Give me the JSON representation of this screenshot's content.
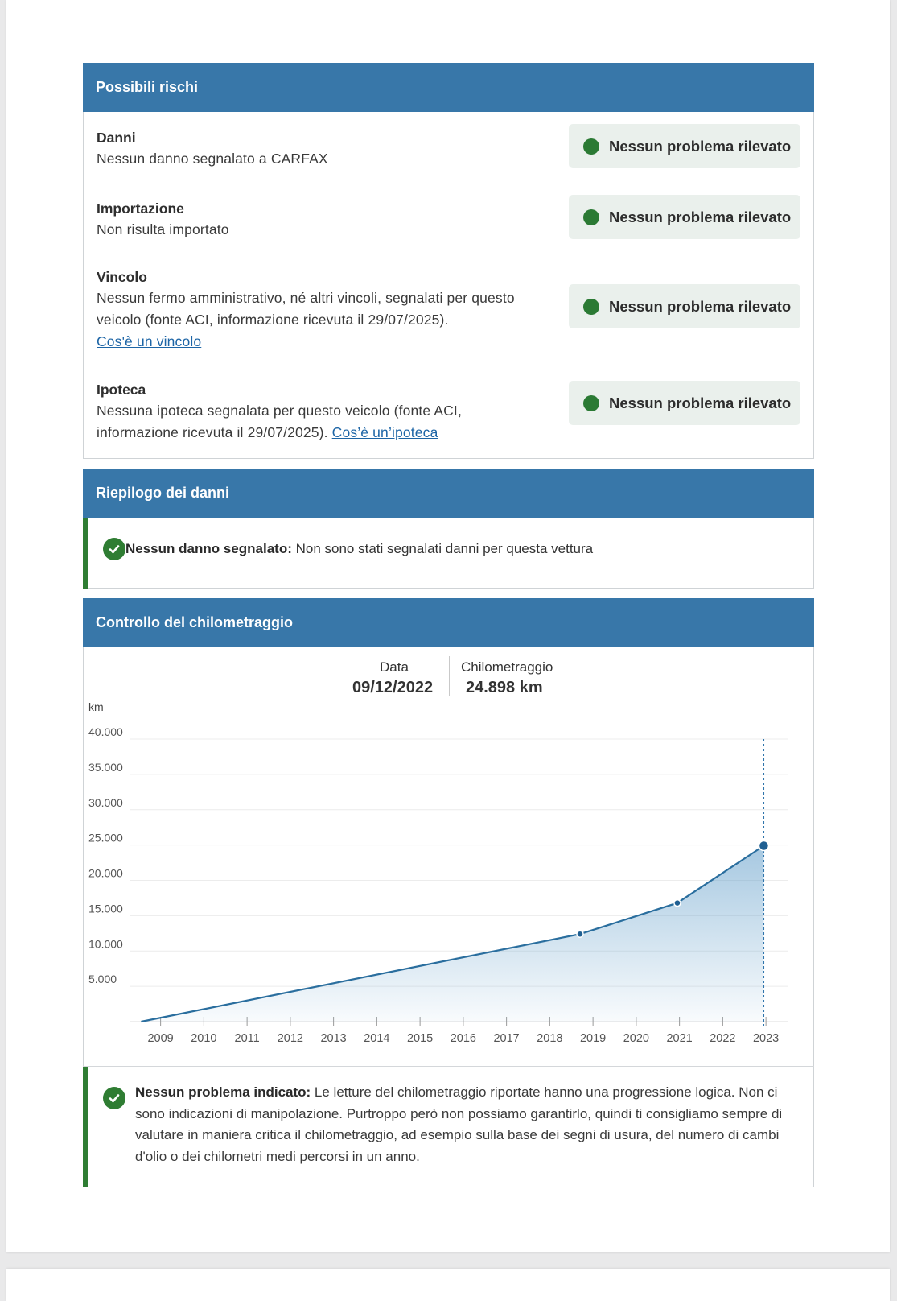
{
  "risks": {
    "title": "Possibili rischi",
    "items": [
      {
        "title": "Danni",
        "text": "Nessun danno segnalato a CARFAX",
        "status": "Nessun problema rilevato"
      },
      {
        "title": "Importazione",
        "text": "Non risulta importato",
        "status": "Nessun problema rilevato"
      },
      {
        "title": "Vincolo",
        "text": "Nessun fermo amministrativo, né altri vincoli, segnalati per questo veicolo (fonte ACI, informazione ricevuta il 29/07/2025).",
        "link": "Cos'è un vincolo",
        "status": "Nessun problema rilevato"
      },
      {
        "title": "Ipoteca",
        "text": "Nessuna ipoteca segnalata per questo veicolo (fonte ACI, informazione ricevuta il 29/07/2025).",
        "link": "Cos’è un’ipoteca",
        "status": "Nessun problema rilevato"
      }
    ]
  },
  "damage": {
    "title": "Riepilogo dei danni",
    "label": "Nessun danno segnalato:",
    "text": " Non sono stati segnalati danni per questa vettura"
  },
  "mileage": {
    "title": "Controllo del chilometraggio",
    "date_label": "Data",
    "date_value": "09/12/2022",
    "km_label": "Chilometraggio",
    "km_value": "24.898 km",
    "note_label": "Nessun problema indicato:",
    "note_text": " Le letture del chilometraggio riportate hanno una progressione logica. Non ci sono indicazioni di manipolazione. Purtroppo però non possiamo garantirlo, quindi ti consigliamo sempre di valutare in maniera critica il chilometraggio, ad esempio sulla base dei segni di usura, del numero di cambi d'olio o dei chilometri medi percorsi in un anno."
  },
  "colors": {
    "header": "#3877a9",
    "ok_green": "#2b7a34",
    "badge_bg": "#eaf0ec",
    "link": "#1d65a6",
    "line": "#2a6e9e"
  },
  "chart_data": {
    "type": "area",
    "ylabel": "km",
    "ylim": [
      0,
      40000
    ],
    "y_ticks": [
      "5.000",
      "10.000",
      "15.000",
      "20.000",
      "25.000",
      "30.000",
      "35.000",
      "40.000"
    ],
    "x_ticks": [
      "2009",
      "2010",
      "2011",
      "2012",
      "2013",
      "2014",
      "2015",
      "2016",
      "2017",
      "2018",
      "2019",
      "2020",
      "2021",
      "2022",
      "2023"
    ],
    "xlim": [
      2008.3,
      2023.5
    ],
    "points": [
      {
        "x": 2008.55,
        "y": 0
      },
      {
        "x": 2018.7,
        "y": 12400
      },
      {
        "x": 2020.95,
        "y": 16800
      },
      {
        "x": 2022.95,
        "y": 24898
      }
    ],
    "highlight_index": 3,
    "grid": true
  }
}
